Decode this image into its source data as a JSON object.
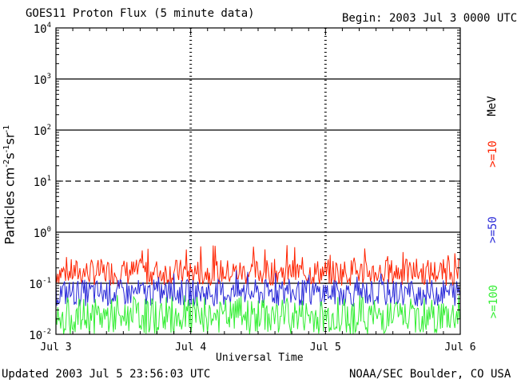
{
  "header": {
    "title": "GOES11 Proton Flux (5 minute data)",
    "begin": "Begin: 2003 Jul 3 0000 UTC"
  },
  "footer": {
    "updated": "Updated 2003 Jul  5 23:56:03 UTC",
    "source": "NOAA/SEC Boulder, CO USA"
  },
  "chart_data": {
    "type": "line",
    "title": "GOES11 Proton Flux (5 minute data)",
    "xlabel": "Universal Time",
    "ylabel_parts": [
      "Particles cm",
      "-2",
      "s",
      "-1",
      "sr",
      "-1"
    ],
    "y_scale": "log",
    "ylim": [
      0.01,
      10000
    ],
    "y_ticks": [
      {
        "base": "10",
        "exp": "-2"
      },
      {
        "base": "10",
        "exp": "-1"
      },
      {
        "base": "10",
        "exp": "0"
      },
      {
        "base": "10",
        "exp": "1"
      },
      {
        "base": "10",
        "exp": "2"
      },
      {
        "base": "10",
        "exp": "3"
      },
      {
        "base": "10",
        "exp": "4"
      }
    ],
    "x_ticks": [
      "Jul 3",
      "Jul 4",
      "Jul 5",
      "Jul 6"
    ],
    "xlim": [
      "2003-07-03 00:00",
      "2003-07-06 00:00"
    ],
    "unit_label": "MeV",
    "series": [
      {
        "name": ">=10",
        "color": "#ff2200",
        "typical_range": [
          0.09,
          0.3
        ],
        "max": 0.6
      },
      {
        "name": ">=50",
        "color": "#2a2ad8",
        "typical_range": [
          0.035,
          0.12
        ],
        "max": 0.2
      },
      {
        "name": ">=100",
        "color": "#33ee33",
        "typical_range": [
          0.01,
          0.05
        ],
        "max": 0.06
      }
    ]
  }
}
